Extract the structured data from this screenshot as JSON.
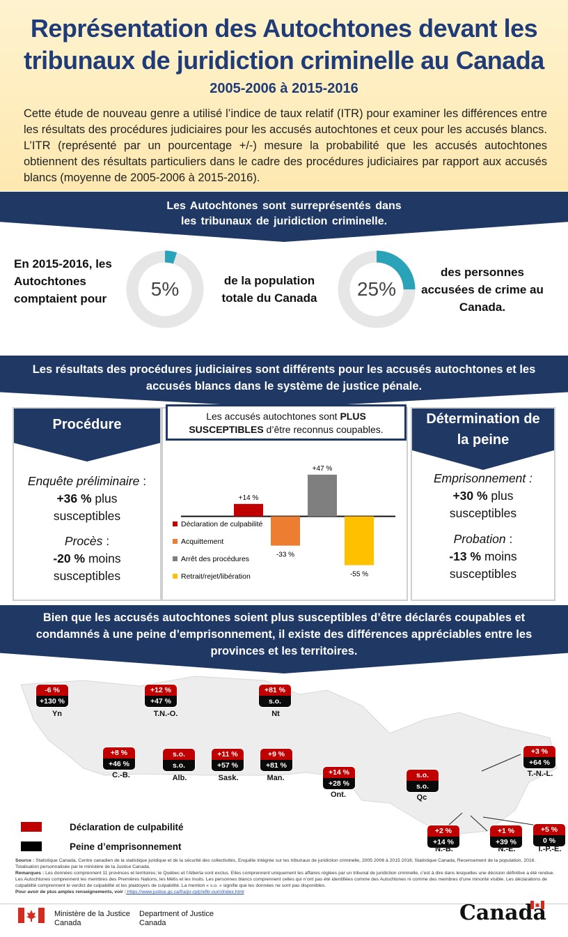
{
  "header": {
    "title_line1": "Représentation des Autochtones devant les",
    "title_line2": "tribunaux de juridiction criminelle au Canada",
    "years": "2005-2006 à 2015-2016",
    "intro": "Cette étude de nouveau genre a utilisé l’indice de taux relatif (ITR) pour examiner les différences entre les résultats des procédures judiciaires pour les accusés autochtones et ceux pour les accusés blancs. L’ITR (représenté par un pourcentage +/-) mesure la probabilité que les accusés autochtones obtiennent des résultats particuliers dans le cadre des procédures judiciaires par rapport aux accusés blancs (moyenne de 2005-2006 à 2015-2016)."
  },
  "section1": {
    "band_line1": "Les Autochtones  sont surreprésentés  dans",
    "band_line2": "les tribunaux  de juridiction  criminelle.",
    "left_text": "En 2015-2016, les Autochtones comptaient pour",
    "donut1_label": "5%",
    "donut1_value": 5,
    "mid_text": "de la population totale du Canada",
    "donut2_label": "25%",
    "donut2_value": 25,
    "right_text": "des personnes accusées de crime au Canada."
  },
  "section2": {
    "band_line1": "Les résultats des procédures judiciaires sont différents pour les accusés autochtones et les",
    "band_line2": "accusés blancs dans le système de justice pénale.",
    "procedure": {
      "title": "Procédure",
      "item1_label": "Enquête préliminaire",
      "item1_suffix": " :",
      "item1_value": "+36 %",
      "item1_word1": " plus",
      "item1_word2": "susceptibles",
      "item2_label": "Procès",
      "item2_suffix": " :",
      "item2_value": "-20 %",
      "item2_word1": " moins",
      "item2_word2": "susceptibles"
    },
    "sentencing": {
      "title_line1": "Détermination de",
      "title_line2": "la peine",
      "item1_label": "Emprisonnement :",
      "item1_value": "+30 %",
      "item1_word1": " plus",
      "item1_word2": "susceptibles",
      "item2_label": "Probation",
      "item2_suffix": " :",
      "item2_value": "-13 %",
      "item2_word1": " moins",
      "item2_word2": "susceptibles"
    },
    "callout_pre": "Les accusés autochtones sont ",
    "callout_bold": "PLUS SUSCEPTIBLES",
    "callout_post": " d’être reconnus coupables."
  },
  "chart_data": {
    "type": "bar",
    "categories": [
      "Déclaration de culpabilité",
      "Acquittement",
      "Arrêt des procédures",
      "Retrait/rejet/libération"
    ],
    "values": [
      14,
      -33,
      47,
      -55
    ],
    "value_labels": [
      "+14 %",
      "-33 %",
      "+47 %",
      "-55 %"
    ],
    "colors": [
      "#c00000",
      "#ed7d31",
      "#7f7f7f",
      "#ffc000"
    ],
    "ylim": [
      -60,
      50
    ],
    "legend_position": "bottom-left"
  },
  "section3": {
    "band_line1": "Bien que les accusés autochtones soient plus susceptibles d’être déclarés coupables et",
    "band_line2": "condamnés à une peine d’emprisonnement, il existe des différences appréciables entre les",
    "band_line3": "provinces et les territoires.",
    "regions": [
      {
        "name": "Yn",
        "guilty": "-6 %",
        "prison": "+130 %"
      },
      {
        "name": "T.N.-O.",
        "guilty": "+12 %",
        "prison": "+47 %"
      },
      {
        "name": "Nt",
        "guilty": "+81 %",
        "prison": "s.o."
      },
      {
        "name": "C.-B.",
        "guilty": "+8 %",
        "prison": "+46 %"
      },
      {
        "name": "Alb.",
        "guilty": "s.o.",
        "prison": "s.o."
      },
      {
        "name": "Sask.",
        "guilty": "+11 %",
        "prison": "+57 %"
      },
      {
        "name": "Man.",
        "guilty": "+9 %",
        "prison": "+81 %"
      },
      {
        "name": "Ont.",
        "guilty": "+14 %",
        "prison": "+28 %"
      },
      {
        "name": "Qc",
        "guilty": "s.o.",
        "prison": "s.o."
      },
      {
        "name": "T.-N.-L.",
        "guilty": "+3 %",
        "prison": "+64 %"
      },
      {
        "name": "N.-B.",
        "guilty": "+2 %",
        "prison": "+14 %"
      },
      {
        "name": "N.-É.",
        "guilty": "+1 %",
        "prison": "+39 %"
      },
      {
        "name": "Î.-P.-É.",
        "guilty": "+5 %",
        "prison": "0 %"
      }
    ],
    "legend_guilty": "Déclaration de culpabilité",
    "legend_prison": "Peine d’emprisonnement",
    "legend_guilty_color": "#c00000",
    "legend_prison_color": "#000000"
  },
  "notes": {
    "source_label": "Source :",
    "source_text": " Statistique Canada, Centre canadien de la statistique juridique et de la sécurité des collectivités, Enquête intégrée sur les tribunaux de juridiction criminelle, 2005 2006 à 2015 2016; Statistique Canada, Recensement de la population, 2016. Totalisation personnalisée par le ministère de la Justice Canada.",
    "remarks_label": "Remarques :",
    "remarks_text": " Les données comprennent 11 provinces et territoires; le Québec et l’Alberta sont exclus. Elles comprennent uniquement les affaires réglées par un tribunal de juridiction criminelle, c’est à dire dans lesquelles une décision définitive a été rendue. Les Autochtones comprennent les membres des Premières Nations, les Métis et les Inuits. Les personnes blancs comprennent celles qui n’ont pas été identifiées comme des Autochtones ni comme des membres d’une minorité visible. Les déclarations de culpabilité comprennent le verdict de culpabilité et les plaidoyers de culpabilité. La mention « s.o. » signifie que les données ne sont pas disponibles.",
    "more_label": "Pour avoir de plus amples renseignements, voir :",
    "more_link": " https://www.justice.gc.ca/fra/pr-rp/jr/efitr-ourri/index.html"
  },
  "footer": {
    "dept_fr_line1": "Ministère de la Justice",
    "dept_fr_line2": "Canada",
    "dept_en_line1": "Department of Justice",
    "dept_en_line2": "Canada",
    "wordmark": "Canada"
  }
}
